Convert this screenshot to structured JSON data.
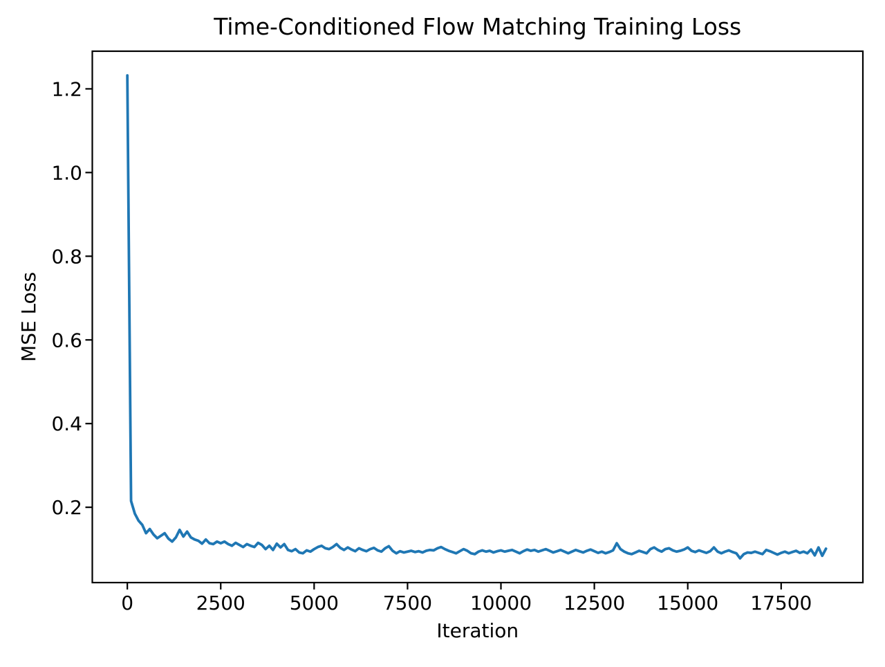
{
  "figure": {
    "background_color": "#ffffff",
    "axes_edge_color": "#000000",
    "tick_color": "#000000"
  },
  "chart_data": {
    "type": "line",
    "title": "Time-Conditioned Flow Matching Training Loss",
    "xlabel": "Iteration",
    "ylabel": "MSE Loss",
    "grid": false,
    "legend": null,
    "xlim": [
      -937.5,
      19687.5
    ],
    "ylim": [
      0.02,
      1.29
    ],
    "xticks": [
      0,
      2500,
      5000,
      7500,
      10000,
      12500,
      15000,
      17500
    ],
    "xtick_labels": [
      "0",
      "2500",
      "5000",
      "7500",
      "10000",
      "12500",
      "15000",
      "17500"
    ],
    "yticks": [
      0.2,
      0.4,
      0.6,
      0.8,
      1.0,
      1.2
    ],
    "ytick_labels": [
      "0.2",
      "0.4",
      "0.6",
      "0.8",
      "1.0",
      "1.2"
    ],
    "line_color": "#1f77b4",
    "series": [
      {
        "name": "training-loss",
        "x": [
          0,
          100,
          200,
          300,
          400,
          500,
          600,
          700,
          800,
          900,
          1000,
          1100,
          1200,
          1300,
          1400,
          1500,
          1600,
          1700,
          1800,
          1900,
          2000,
          2100,
          2200,
          2300,
          2400,
          2500,
          2600,
          2700,
          2800,
          2900,
          3000,
          3100,
          3200,
          3300,
          3400,
          3500,
          3600,
          3700,
          3800,
          3900,
          4000,
          4100,
          4200,
          4300,
          4400,
          4500,
          4600,
          4700,
          4800,
          4900,
          5000,
          5100,
          5200,
          5300,
          5400,
          5500,
          5600,
          5700,
          5800,
          5900,
          6000,
          6100,
          6200,
          6300,
          6400,
          6500,
          6600,
          6700,
          6800,
          6900,
          7000,
          7100,
          7200,
          7300,
          7400,
          7500,
          7600,
          7700,
          7800,
          7900,
          8000,
          8100,
          8200,
          8300,
          8400,
          8500,
          8600,
          8700,
          8800,
          8900,
          9000,
          9100,
          9200,
          9300,
          9400,
          9500,
          9600,
          9700,
          9800,
          9900,
          10000,
          10100,
          10200,
          10300,
          10400,
          10500,
          10600,
          10700,
          10800,
          10900,
          11000,
          11100,
          11200,
          11300,
          11400,
          11500,
          11600,
          11700,
          11800,
          11900,
          12000,
          12100,
          12200,
          12300,
          12400,
          12500,
          12600,
          12700,
          12800,
          12900,
          13000,
          13100,
          13200,
          13300,
          13400,
          13500,
          13600,
          13700,
          13800,
          13900,
          14000,
          14100,
          14200,
          14300,
          14400,
          14500,
          14600,
          14700,
          14800,
          14900,
          15000,
          15100,
          15200,
          15300,
          15400,
          15500,
          15600,
          15700,
          15800,
          15900,
          16000,
          16100,
          16200,
          16300,
          16400,
          16500,
          16600,
          16700,
          16800,
          16900,
          17000,
          17100,
          17200,
          17300,
          17400,
          17500,
          17600,
          17700,
          17800,
          17900,
          18000,
          18100,
          18200,
          18300,
          18400,
          18500,
          18600,
          18700
        ],
        "y": [
          1.232,
          0.215,
          0.185,
          0.168,
          0.158,
          0.138,
          0.148,
          0.135,
          0.126,
          0.132,
          0.138,
          0.125,
          0.118,
          0.128,
          0.146,
          0.13,
          0.142,
          0.128,
          0.123,
          0.12,
          0.113,
          0.123,
          0.114,
          0.112,
          0.118,
          0.114,
          0.118,
          0.112,
          0.108,
          0.115,
          0.11,
          0.105,
          0.112,
          0.108,
          0.105,
          0.115,
          0.11,
          0.1,
          0.108,
          0.098,
          0.113,
          0.104,
          0.112,
          0.098,
          0.095,
          0.1,
          0.092,
          0.09,
          0.097,
          0.094,
          0.1,
          0.105,
          0.108,
          0.102,
          0.1,
          0.105,
          0.112,
          0.103,
          0.098,
          0.104,
          0.099,
          0.095,
          0.102,
          0.098,
          0.095,
          0.1,
          0.103,
          0.097,
          0.094,
          0.102,
          0.107,
          0.096,
          0.09,
          0.095,
          0.092,
          0.094,
          0.096,
          0.093,
          0.095,
          0.092,
          0.096,
          0.098,
          0.097,
          0.102,
          0.105,
          0.1,
          0.096,
          0.093,
          0.09,
          0.095,
          0.1,
          0.096,
          0.09,
          0.088,
          0.094,
          0.097,
          0.094,
          0.096,
          0.092,
          0.095,
          0.097,
          0.094,
          0.096,
          0.098,
          0.094,
          0.09,
          0.095,
          0.099,
          0.096,
          0.098,
          0.094,
          0.097,
          0.1,
          0.096,
          0.092,
          0.095,
          0.098,
          0.094,
          0.09,
          0.094,
          0.098,
          0.095,
          0.092,
          0.096,
          0.099,
          0.095,
          0.091,
          0.094,
          0.09,
          0.093,
          0.097,
          0.114,
          0.1,
          0.094,
          0.09,
          0.088,
          0.092,
          0.096,
          0.093,
          0.09,
          0.1,
          0.104,
          0.098,
          0.094,
          0.1,
          0.102,
          0.097,
          0.094,
          0.096,
          0.099,
          0.104,
          0.096,
          0.093,
          0.097,
          0.094,
          0.091,
          0.095,
          0.104,
          0.094,
          0.09,
          0.094,
          0.097,
          0.093,
          0.09,
          0.078,
          0.088,
          0.092,
          0.091,
          0.094,
          0.091,
          0.088,
          0.098,
          0.095,
          0.091,
          0.087,
          0.091,
          0.094,
          0.09,
          0.093,
          0.096,
          0.091,
          0.094,
          0.09,
          0.099,
          0.085,
          0.104,
          0.084,
          0.101
        ]
      }
    ]
  }
}
